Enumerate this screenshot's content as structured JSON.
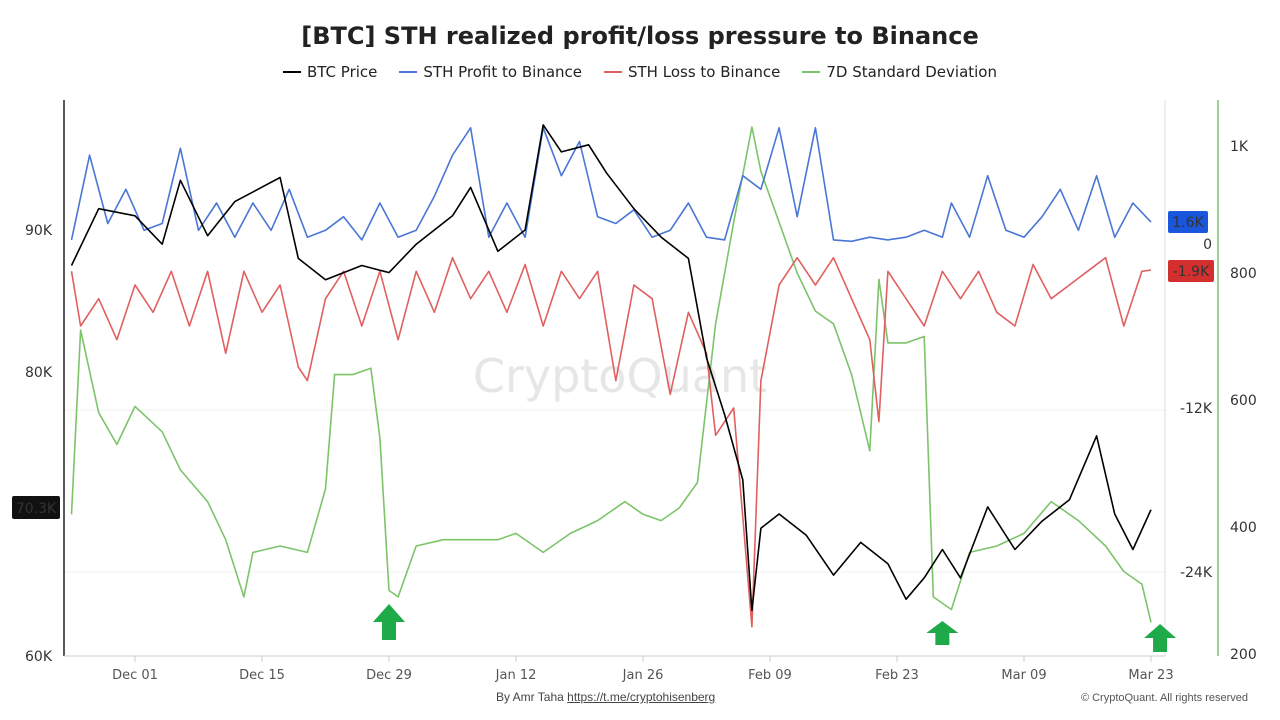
{
  "chart_data": {
    "type": "line",
    "title": "[BTC] STH realized profit/loss pressure to Binance",
    "legend_position": "top",
    "watermark": "CryptoQuant",
    "x_ticks": [
      "Dec 01",
      "Dec 15",
      "Dec 29",
      "Jan 12",
      "Jan 26",
      "Feb 09",
      "Feb 23",
      "Mar 09",
      "Mar 23"
    ],
    "axes": {
      "left": {
        "ticks": [
          "90K",
          "80K",
          "60K"
        ],
        "range": [
          60000,
          99000
        ],
        "current_badge": "70.3K"
      },
      "middle": {
        "ticks": [
          "0",
          "-12K",
          "-24K"
        ],
        "range": [
          -30000,
          10000
        ],
        "badges": [
          {
            "label": "1.6K",
            "color": "#1a56db"
          },
          {
            "label": "-1.9K",
            "color": "#d32f2f"
          }
        ]
      },
      "right": {
        "ticks": [
          "1K",
          "800",
          "600",
          "400",
          "200"
        ],
        "range": [
          200,
          1060
        ]
      }
    },
    "series": [
      {
        "name": "BTC Price",
        "color": "#000000",
        "axis": "left",
        "points": [
          [
            "2024-11-24",
            87500
          ],
          [
            "2024-11-27",
            91500
          ],
          [
            "2024-12-01",
            91000
          ],
          [
            "2024-12-04",
            89000
          ],
          [
            "2024-12-06",
            93500
          ],
          [
            "2024-12-09",
            89600
          ],
          [
            "2024-12-12",
            92000
          ],
          [
            "2024-12-17",
            93700
          ],
          [
            "2024-12-19",
            88000
          ],
          [
            "2024-12-22",
            86500
          ],
          [
            "2024-12-26",
            87500
          ],
          [
            "2024-12-29",
            87000
          ],
          [
            "2025-01-01",
            89000
          ],
          [
            "2025-01-05",
            91000
          ],
          [
            "2025-01-07",
            93000
          ],
          [
            "2025-01-10",
            88500
          ],
          [
            "2025-01-13",
            90000
          ],
          [
            "2025-01-15",
            97400
          ],
          [
            "2025-01-17",
            95500
          ],
          [
            "2025-01-20",
            96000
          ],
          [
            "2025-01-22",
            94000
          ],
          [
            "2025-01-25",
            91500
          ],
          [
            "2025-01-28",
            89500
          ],
          [
            "2025-01-31",
            88000
          ],
          [
            "2025-02-02",
            81000
          ],
          [
            "2025-02-04",
            77000
          ],
          [
            "2025-02-06",
            72400
          ],
          [
            "2025-02-07",
            63200
          ],
          [
            "2025-02-08",
            69000
          ],
          [
            "2025-02-10",
            70000
          ],
          [
            "2025-02-13",
            68500
          ],
          [
            "2025-02-16",
            65700
          ],
          [
            "2025-02-19",
            68000
          ],
          [
            "2025-02-22",
            66500
          ],
          [
            "2025-02-24",
            64000
          ],
          [
            "2025-02-26",
            65500
          ],
          [
            "2025-02-28",
            67500
          ],
          [
            "2025-03-02",
            65500
          ],
          [
            "2025-03-05",
            70500
          ],
          [
            "2025-03-08",
            67500
          ],
          [
            "2025-03-11",
            69500
          ],
          [
            "2025-03-14",
            71000
          ],
          [
            "2025-03-17",
            75500
          ],
          [
            "2025-03-19",
            70000
          ],
          [
            "2025-03-21",
            67500
          ],
          [
            "2025-03-23",
            70300
          ]
        ]
      },
      {
        "name": "STH Profit to Binance",
        "color": "#4a76d6",
        "axis": "middle",
        "points": [
          [
            "2024-11-24",
            300
          ],
          [
            "2024-11-26",
            6500
          ],
          [
            "2024-11-28",
            1500
          ],
          [
            "2024-11-30",
            4000
          ],
          [
            "2024-12-02",
            1000
          ],
          [
            "2024-12-04",
            1500
          ],
          [
            "2024-12-06",
            7000
          ],
          [
            "2024-12-08",
            1000
          ],
          [
            "2024-12-10",
            3000
          ],
          [
            "2024-12-12",
            500
          ],
          [
            "2024-12-14",
            3000
          ],
          [
            "2024-12-16",
            1000
          ],
          [
            "2024-12-18",
            4000
          ],
          [
            "2024-12-20",
            500
          ],
          [
            "2024-12-22",
            1000
          ],
          [
            "2024-12-24",
            2000
          ],
          [
            "2024-12-26",
            300
          ],
          [
            "2024-12-28",
            3000
          ],
          [
            "2024-12-30",
            500
          ],
          [
            "2025-01-01",
            1000
          ],
          [
            "2025-01-03",
            3500
          ],
          [
            "2025-01-05",
            6500
          ],
          [
            "2025-01-07",
            8500
          ],
          [
            "2025-01-09",
            500
          ],
          [
            "2025-01-11",
            3000
          ],
          [
            "2025-01-13",
            500
          ],
          [
            "2025-01-15",
            8500
          ],
          [
            "2025-01-17",
            5000
          ],
          [
            "2025-01-19",
            7500
          ],
          [
            "2025-01-21",
            2000
          ],
          [
            "2025-01-23",
            1500
          ],
          [
            "2025-01-25",
            2500
          ],
          [
            "2025-01-27",
            500
          ],
          [
            "2025-01-29",
            1000
          ],
          [
            "2025-01-31",
            3000
          ],
          [
            "2025-02-02",
            500
          ],
          [
            "2025-02-04",
            300
          ],
          [
            "2025-02-06",
            5000
          ],
          [
            "2025-02-08",
            4000
          ],
          [
            "2025-02-10",
            8500
          ],
          [
            "2025-02-12",
            2000
          ],
          [
            "2025-02-14",
            8500
          ],
          [
            "2025-02-16",
            300
          ],
          [
            "2025-02-18",
            200
          ],
          [
            "2025-02-20",
            500
          ],
          [
            "2025-02-22",
            300
          ],
          [
            "2025-02-24",
            500
          ],
          [
            "2025-02-26",
            1000
          ],
          [
            "2025-02-28",
            500
          ],
          [
            "2025-03-01",
            3000
          ],
          [
            "2025-03-03",
            500
          ],
          [
            "2025-03-05",
            5000
          ],
          [
            "2025-03-07",
            1000
          ],
          [
            "2025-03-09",
            500
          ],
          [
            "2025-03-11",
            2000
          ],
          [
            "2025-03-13",
            4000
          ],
          [
            "2025-03-15",
            1000
          ],
          [
            "2025-03-17",
            5000
          ],
          [
            "2025-03-19",
            500
          ],
          [
            "2025-03-21",
            3000
          ],
          [
            "2025-03-23",
            1600
          ]
        ]
      },
      {
        "name": "STH Loss to Binance",
        "color": "#e06060",
        "axis": "middle",
        "points": [
          [
            "2024-11-24",
            -2000
          ],
          [
            "2024-11-25",
            -6000
          ],
          [
            "2024-11-27",
            -4000
          ],
          [
            "2024-11-29",
            -7000
          ],
          [
            "2024-12-01",
            -3000
          ],
          [
            "2024-12-03",
            -5000
          ],
          [
            "2024-12-05",
            -2000
          ],
          [
            "2024-12-07",
            -6000
          ],
          [
            "2024-12-09",
            -2000
          ],
          [
            "2024-12-11",
            -8000
          ],
          [
            "2024-12-13",
            -2000
          ],
          [
            "2024-12-15",
            -5000
          ],
          [
            "2024-12-17",
            -3000
          ],
          [
            "2024-12-19",
            -9000
          ],
          [
            "2024-12-20",
            -10000
          ],
          [
            "2024-12-22",
            -4000
          ],
          [
            "2024-12-24",
            -2000
          ],
          [
            "2024-12-26",
            -6000
          ],
          [
            "2024-12-28",
            -2000
          ],
          [
            "2024-12-30",
            -7000
          ],
          [
            "2025-01-01",
            -2000
          ],
          [
            "2025-01-03",
            -5000
          ],
          [
            "2025-01-05",
            -1000
          ],
          [
            "2025-01-07",
            -4000
          ],
          [
            "2025-01-09",
            -2000
          ],
          [
            "2025-01-11",
            -5000
          ],
          [
            "2025-01-13",
            -1500
          ],
          [
            "2025-01-15",
            -6000
          ],
          [
            "2025-01-17",
            -2000
          ],
          [
            "2025-01-19",
            -4000
          ],
          [
            "2025-01-21",
            -2000
          ],
          [
            "2025-01-23",
            -10000
          ],
          [
            "2025-01-25",
            -3000
          ],
          [
            "2025-01-27",
            -4000
          ],
          [
            "2025-01-29",
            -11000
          ],
          [
            "2025-01-31",
            -5000
          ],
          [
            "2025-02-02",
            -8000
          ],
          [
            "2025-02-03",
            -14000
          ],
          [
            "2025-02-05",
            -12000
          ],
          [
            "2025-02-07",
            -28000
          ],
          [
            "2025-02-08",
            -10000
          ],
          [
            "2025-02-10",
            -3000
          ],
          [
            "2025-02-12",
            -1000
          ],
          [
            "2025-02-14",
            -3000
          ],
          [
            "2025-02-16",
            -1000
          ],
          [
            "2025-02-18",
            -4000
          ],
          [
            "2025-02-20",
            -7000
          ],
          [
            "2025-02-21",
            -13000
          ],
          [
            "2025-02-22",
            -2000
          ],
          [
            "2025-02-24",
            -4000
          ],
          [
            "2025-02-26",
            -6000
          ],
          [
            "2025-02-28",
            -2000
          ],
          [
            "2025-03-02",
            -4000
          ],
          [
            "2025-03-04",
            -2000
          ],
          [
            "2025-03-06",
            -5000
          ],
          [
            "2025-03-08",
            -6000
          ],
          [
            "2025-03-10",
            -1500
          ],
          [
            "2025-03-12",
            -4000
          ],
          [
            "2025-03-14",
            -3000
          ],
          [
            "2025-03-16",
            -2000
          ],
          [
            "2025-03-18",
            -1000
          ],
          [
            "2025-03-20",
            -6000
          ],
          [
            "2025-03-22",
            -2000
          ],
          [
            "2025-03-23",
            -1900
          ]
        ]
      },
      {
        "name": "7D Standard Deviation",
        "color": "#7cc46a",
        "axis": "right",
        "points": [
          [
            "2024-11-24",
            420
          ],
          [
            "2024-11-25",
            710
          ],
          [
            "2024-11-27",
            580
          ],
          [
            "2024-11-29",
            530
          ],
          [
            "2024-12-01",
            590
          ],
          [
            "2024-12-04",
            550
          ],
          [
            "2024-12-06",
            490
          ],
          [
            "2024-12-09",
            440
          ],
          [
            "2024-12-11",
            380
          ],
          [
            "2024-12-13",
            290
          ],
          [
            "2024-12-14",
            360
          ],
          [
            "2024-12-17",
            370
          ],
          [
            "2024-12-20",
            360
          ],
          [
            "2024-12-22",
            460
          ],
          [
            "2024-12-23",
            640
          ],
          [
            "2024-12-25",
            640
          ],
          [
            "2024-12-27",
            650
          ],
          [
            "2024-12-28",
            540
          ],
          [
            "2024-12-29",
            300
          ],
          [
            "2024-12-30",
            290
          ],
          [
            "2025-01-01",
            370
          ],
          [
            "2025-01-04",
            380
          ],
          [
            "2025-01-07",
            380
          ],
          [
            "2025-01-10",
            380
          ],
          [
            "2025-01-12",
            390
          ],
          [
            "2025-01-15",
            360
          ],
          [
            "2025-01-18",
            390
          ],
          [
            "2025-01-21",
            410
          ],
          [
            "2025-01-24",
            440
          ],
          [
            "2025-01-26",
            420
          ],
          [
            "2025-01-28",
            410
          ],
          [
            "2025-01-30",
            430
          ],
          [
            "2025-02-01",
            470
          ],
          [
            "2025-02-03",
            720
          ],
          [
            "2025-02-05",
            880
          ],
          [
            "2025-02-07",
            1030
          ],
          [
            "2025-02-08",
            960
          ],
          [
            "2025-02-10",
            880
          ],
          [
            "2025-02-12",
            800
          ],
          [
            "2025-02-14",
            740
          ],
          [
            "2025-02-16",
            720
          ],
          [
            "2025-02-18",
            640
          ],
          [
            "2025-02-20",
            520
          ],
          [
            "2025-02-21",
            790
          ],
          [
            "2025-02-22",
            690
          ],
          [
            "2025-02-24",
            690
          ],
          [
            "2025-02-26",
            700
          ],
          [
            "2025-02-27",
            290
          ],
          [
            "2025-03-01",
            270
          ],
          [
            "2025-03-03",
            360
          ],
          [
            "2025-03-06",
            370
          ],
          [
            "2025-03-09",
            390
          ],
          [
            "2025-03-12",
            440
          ],
          [
            "2025-03-15",
            410
          ],
          [
            "2025-03-18",
            370
          ],
          [
            "2025-03-20",
            330
          ],
          [
            "2025-03-22",
            310
          ],
          [
            "2025-03-23",
            250
          ]
        ]
      }
    ],
    "annotations": [
      {
        "type": "up-arrow",
        "date": "2024-12-29",
        "color": "#1faa4a"
      },
      {
        "type": "up-arrow",
        "date": "2025-02-28",
        "color": "#1faa4a"
      },
      {
        "type": "up-arrow",
        "date": "2025-03-24",
        "color": "#1faa4a"
      }
    ]
  },
  "footer": {
    "author": "By Amr Taha",
    "link": "https://t.me/cryptohisenberg",
    "copyright": "© CryptoQuant. All rights reserved"
  }
}
